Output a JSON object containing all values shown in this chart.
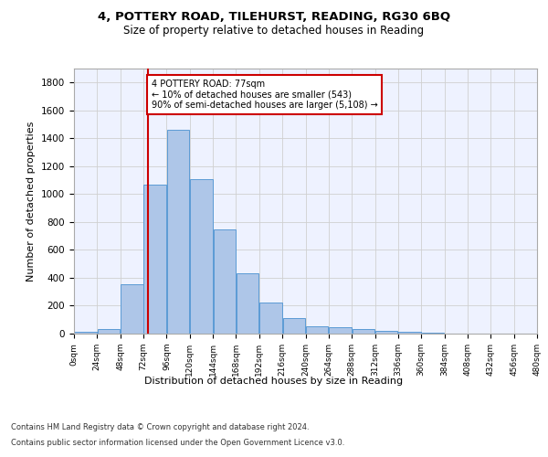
{
  "title": "4, POTTERY ROAD, TILEHURST, READING, RG30 6BQ",
  "subtitle": "Size of property relative to detached houses in Reading",
  "xlabel": "Distribution of detached houses by size in Reading",
  "ylabel": "Number of detached properties",
  "bar_values": [
    10,
    35,
    355,
    1065,
    1460,
    1110,
    745,
    435,
    225,
    110,
    55,
    45,
    30,
    20,
    10,
    5,
    3,
    2,
    1
  ],
  "bin_edges": [
    0,
    24,
    48,
    72,
    96,
    120,
    144,
    168,
    192,
    216,
    240,
    264,
    288,
    312,
    336,
    360,
    384,
    408,
    432,
    456
  ],
  "tick_labels": [
    "0sqm",
    "24sqm",
    "48sqm",
    "72sqm",
    "96sqm",
    "120sqm",
    "144sqm",
    "168sqm",
    "192sqm",
    "216sqm",
    "240sqm",
    "264sqm",
    "288sqm",
    "312sqm",
    "336sqm",
    "360sqm",
    "384sqm",
    "408sqm",
    "432sqm",
    "456sqm",
    "480sqm"
  ],
  "bar_color": "#aec6e8",
  "bar_edge_color": "#5b9bd5",
  "vline_x": 77,
  "vline_color": "#cc0000",
  "annotation_text": "4 POTTERY ROAD: 77sqm\n← 10% of detached houses are smaller (543)\n90% of semi-detached houses are larger (5,108) →",
  "annotation_box_color": "#ffffff",
  "annotation_box_edge": "#cc0000",
  "ylim": [
    0,
    1900
  ],
  "yticks": [
    0,
    200,
    400,
    600,
    800,
    1000,
    1200,
    1400,
    1600,
    1800
  ],
  "grid_color": "#d0d0d0",
  "background_color": "#ffffff",
  "footer_line1": "Contains HM Land Registry data © Crown copyright and database right 2024.",
  "footer_line2": "Contains public sector information licensed under the Open Government Licence v3.0.",
  "title_fontsize": 9.5,
  "subtitle_fontsize": 8.5,
  "ax_facecolor": "#eef2ff"
}
